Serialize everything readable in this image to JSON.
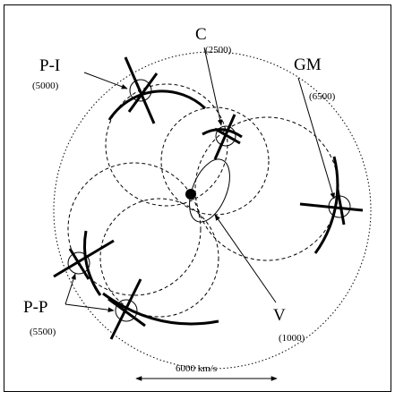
{
  "labels": {
    "pi": "P-I",
    "pi_value": "(5000)",
    "c": "C",
    "c_value": "(2500)",
    "gm": "GM",
    "gm_value": "(6500)",
    "pp": "P-P",
    "pp_value": "(5500)",
    "v": "V",
    "v_value": "(1000)"
  },
  "scale_bar": {
    "label": "6000 km/s"
  }
}
